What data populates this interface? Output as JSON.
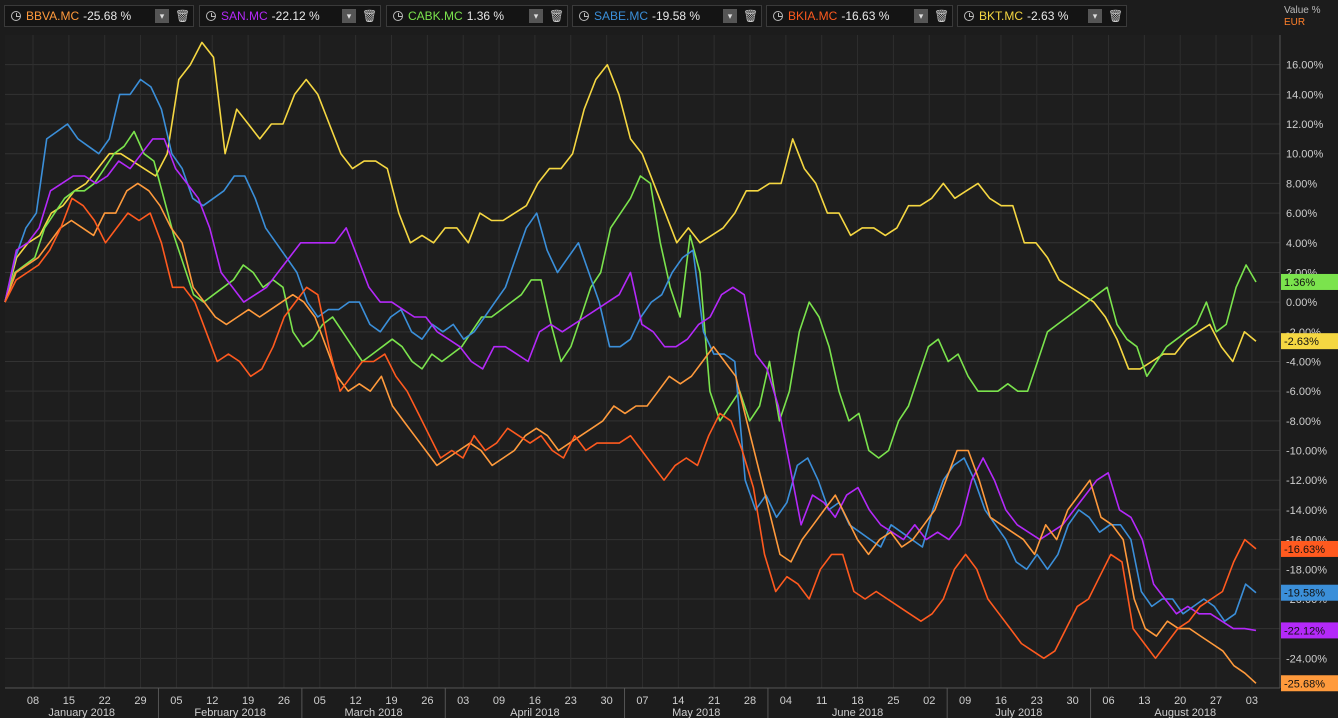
{
  "header": {
    "unit_label": "Value %",
    "currency_label": "EUR"
  },
  "legend": [
    {
      "symbol": "BBVA.MC",
      "value": "-25.68 %",
      "color": "#ff9a3c",
      "icon": "clock-icon"
    },
    {
      "symbol": "SAN.MC",
      "value": "-22.12 %",
      "color": "#b429f9",
      "icon": "clock-icon"
    },
    {
      "symbol": "CABK.MC",
      "value": "1.36 %",
      "color": "#7be34d",
      "icon": "clock-icon"
    },
    {
      "symbol": "SABE.MC",
      "value": "-19.58 %",
      "color": "#3b8fd9",
      "icon": "clock-icon"
    },
    {
      "symbol": "BKIA.MC",
      "value": "-16.63 %",
      "color": "#ff5a1f",
      "icon": "clock-icon"
    },
    {
      "symbol": "BKT.MC",
      "value": "-2.63 %",
      "color": "#f5d742",
      "icon": "clock-icon"
    }
  ],
  "chart_data": {
    "type": "line",
    "ylabel": "Value %",
    "ylim": [
      -26,
      18
    ],
    "y_ticks": [
      "16.00%",
      "14.00%",
      "12.00%",
      "10.00%",
      "8.00%",
      "6.00%",
      "4.00%",
      "2.00%",
      "0.00%",
      "-2.00%",
      "-4.00%",
      "-6.00%",
      "-8.00%",
      "-10.00%",
      "-12.00%",
      "-14.00%",
      "-16.00%",
      "-18.00%",
      "-20.00%",
      "-22.00%",
      "-24.00%"
    ],
    "y_tick_values": [
      16,
      14,
      12,
      10,
      8,
      6,
      4,
      2,
      0,
      -2,
      -4,
      -6,
      -8,
      -10,
      -12,
      -14,
      -16,
      -18,
      -20,
      -22,
      -24
    ],
    "x_ticks": [
      "08",
      "15",
      "22",
      "29",
      "05",
      "12",
      "19",
      "26",
      "05",
      "12",
      "19",
      "26",
      "03",
      "09",
      "16",
      "23",
      "30",
      "07",
      "14",
      "21",
      "28",
      "04",
      "11",
      "18",
      "25",
      "02",
      "09",
      "16",
      "23",
      "30",
      "06",
      "13",
      "20",
      "27",
      "03"
    ],
    "months": [
      "January 2018",
      "February 2018",
      "March 2018",
      "April 2018",
      "May 2018",
      "June 2018",
      "July 2018",
      "August 2018"
    ],
    "end_labels": [
      {
        "series": "CABK.MC",
        "text": "1.36%",
        "value": 1.36
      },
      {
        "series": "BKT.MC",
        "text": "-2.63%",
        "value": -2.63
      },
      {
        "series": "BKIA.MC",
        "text": "-16.63%",
        "value": -16.63
      },
      {
        "series": "SABE.MC",
        "text": "-19.58%",
        "value": -19.58
      },
      {
        "series": "SAN.MC",
        "text": "-22.12%",
        "value": -22.12
      },
      {
        "series": "BBVA.MC",
        "text": "-25.68%",
        "value": -25.68
      }
    ],
    "series": [
      {
        "name": "BKT.MC",
        "color": "#f5d742",
        "values": [
          0,
          3,
          4,
          4.5,
          6,
          6.5,
          7.5,
          8,
          9,
          10,
          10,
          9.5,
          9,
          8.5,
          10,
          15,
          16,
          17.5,
          16.5,
          10,
          13,
          12,
          11,
          12,
          12,
          14,
          15,
          14,
          12,
          10,
          9,
          9.5,
          9.5,
          9,
          6,
          4,
          4.5,
          4,
          5,
          5,
          4,
          6,
          5.5,
          5.5,
          6,
          6.5,
          8,
          9,
          9,
          10,
          13,
          15,
          16,
          14,
          11,
          10,
          8,
          6,
          4,
          5,
          4,
          4.5,
          5,
          6,
          7.5,
          7.5,
          8,
          8,
          11,
          9,
          8,
          6,
          6,
          4.5,
          5,
          5,
          4.5,
          5,
          6.5,
          6.5,
          7,
          8,
          7,
          7.5,
          8,
          7,
          6.5,
          6.5,
          4,
          4,
          3,
          1.5,
          1,
          0.5,
          0,
          -1,
          -2.5,
          -4.5,
          -4.5,
          -4,
          -3.5,
          -3.5,
          -2.5,
          -2,
          -1.5,
          -3,
          -4,
          -2,
          -2.63
        ]
      },
      {
        "name": "CABK.MC",
        "color": "#7be34d",
        "values": [
          0,
          2,
          2.5,
          3,
          5,
          6,
          7,
          7.5,
          7.5,
          8,
          9,
          10,
          10.5,
          11.5,
          10,
          9.5,
          7,
          4.5,
          2.5,
          0.5,
          0,
          0.5,
          1,
          1.5,
          2.5,
          2,
          1,
          1.5,
          1,
          -2,
          -3,
          -2.5,
          -1.5,
          -1,
          -2,
          -3,
          -4,
          -3.5,
          -3,
          -2.5,
          -3,
          -4,
          -4.5,
          -3.5,
          -4,
          -3.5,
          -3,
          -2,
          -1,
          -1,
          -0.5,
          0,
          0.5,
          1.5,
          1.5,
          -1.5,
          -4,
          -3,
          -1,
          1,
          2,
          5,
          6,
          7,
          8.5,
          8,
          4,
          1,
          -1,
          4.5,
          2,
          -6,
          -8,
          -7,
          -6,
          -8,
          -7,
          -4,
          -8,
          -6,
          -2,
          0,
          -1,
          -3,
          -6,
          -8,
          -7.5,
          -10,
          -10.5,
          -10,
          -8,
          -7,
          -5,
          -3,
          -2.5,
          -4,
          -3.5,
          -5,
          -6,
          -6,
          -6,
          -5.5,
          -6,
          -6,
          -4,
          -2,
          -1.5,
          -1,
          -0.5,
          0,
          0.5,
          1,
          -1.5,
          -2.5,
          -3,
          -5,
          -4,
          -3,
          -2.5,
          -2,
          -1.5,
          0,
          -2,
          -1.5,
          1,
          2.5,
          1.36
        ]
      },
      {
        "name": "SABE.MC",
        "color": "#3b8fd9",
        "values": [
          0,
          3,
          5,
          6,
          11,
          11.5,
          12,
          11,
          10.5,
          10,
          11,
          14,
          14,
          15,
          14.5,
          13,
          10,
          9,
          7,
          6.5,
          7,
          7.5,
          8.5,
          8.5,
          7,
          5,
          4,
          3,
          2,
          0,
          -1,
          -0.5,
          -0.5,
          0,
          0,
          -1.5,
          -2,
          -1,
          -0.5,
          -2,
          -2.5,
          -1.5,
          -2,
          -1.5,
          -2.5,
          -2,
          -1,
          0,
          1,
          3,
          5,
          6,
          3.5,
          2,
          3,
          4,
          2,
          0,
          -3,
          -3,
          -2.5,
          -1,
          0,
          0.5,
          2,
          3,
          3.5,
          -2,
          -3.5,
          -3.5,
          -4,
          -12,
          -14,
          -13,
          -14.5,
          -13.5,
          -11,
          -10.5,
          -12,
          -14,
          -13.5,
          -15,
          -15.5,
          -16,
          -16.5,
          -15,
          -15.5,
          -16,
          -16.5,
          -14,
          -12,
          -11,
          -10.5,
          -12,
          -14,
          -15,
          -16,
          -17.5,
          -18,
          -17,
          -18,
          -17,
          -15,
          -14,
          -14.5,
          -15.5,
          -15,
          -15,
          -16,
          -19.5,
          -20.5,
          -20,
          -20,
          -21,
          -20.5,
          -20,
          -20.5,
          -21.5,
          -21,
          -19,
          -19.58
        ]
      },
      {
        "name": "SAN.MC",
        "color": "#b429f9",
        "values": [
          0,
          3.5,
          4,
          5,
          7.5,
          8,
          8.5,
          8.5,
          8,
          8.5,
          9.5,
          9,
          10,
          11,
          11,
          9,
          8,
          7,
          5,
          2,
          1,
          0,
          0.5,
          1,
          2,
          3,
          4,
          4,
          4,
          4,
          5,
          3,
          1,
          0,
          0,
          -0.5,
          -1,
          -1,
          -2,
          -2.5,
          -3,
          -4,
          -4.5,
          -3,
          -3,
          -3.5,
          -4,
          -2,
          -1.5,
          -2,
          -1.5,
          -1,
          -0.5,
          0,
          0.5,
          2,
          -1.5,
          -2,
          -3,
          -3,
          -2.5,
          -1.5,
          -1,
          0.5,
          1,
          0.5,
          -3.5,
          -4.5,
          -7,
          -11,
          -15,
          -13,
          -13.5,
          -14.5,
          -13,
          -12.5,
          -14,
          -15,
          -15.5,
          -16,
          -15,
          -16,
          -15.5,
          -16,
          -15,
          -12,
          -10.5,
          -12,
          -14,
          -15,
          -15.5,
          -16,
          -15.5,
          -15,
          -14,
          -13,
          -12,
          -11.5,
          -14,
          -14.5,
          -16,
          -19,
          -20,
          -21,
          -20.5,
          -21,
          -21,
          -21.5,
          -22,
          -22,
          -22.12
        ]
      },
      {
        "name": "BBVA.MC",
        "color": "#ff9a3c",
        "values": [
          0,
          2,
          2.5,
          3,
          4,
          5,
          5.5,
          5,
          4.5,
          6,
          6,
          7.5,
          8,
          7.5,
          6.5,
          5,
          4,
          1,
          0,
          -1,
          -1.5,
          -1,
          -0.5,
          -1,
          -0.5,
          0,
          0.5,
          0,
          -1,
          -3,
          -5,
          -6,
          -5.5,
          -6,
          -5,
          -7,
          -8,
          -9,
          -10,
          -11,
          -10.5,
          -10,
          -9.5,
          -10,
          -11,
          -10.5,
          -10,
          -9,
          -8.5,
          -9,
          -10,
          -9.5,
          -9,
          -8.5,
          -8,
          -7,
          -7.5,
          -7,
          -7,
          -6,
          -5,
          -5.5,
          -5,
          -4,
          -3,
          -4,
          -5,
          -8,
          -11,
          -14,
          -17,
          -17.5,
          -16,
          -15,
          -14,
          -13,
          -14.5,
          -16,
          -17,
          -16,
          -15.5,
          -16.5,
          -16,
          -15,
          -14,
          -12,
          -10,
          -10,
          -12,
          -14.5,
          -15,
          -15.5,
          -16,
          -17,
          -15,
          -16,
          -14,
          -13,
          -12,
          -14.5,
          -15,
          -16,
          -20,
          -22,
          -22.5,
          -21.5,
          -22,
          -22,
          -22.5,
          -23,
          -23.5,
          -24.5,
          -25,
          -25.68
        ]
      },
      {
        "name": "BKIA.MC",
        "color": "#ff5a1f",
        "values": [
          0,
          1.5,
          2,
          2.5,
          3.5,
          5,
          7,
          6.5,
          5.5,
          4,
          5,
          6,
          5.5,
          6,
          4,
          1,
          1,
          0,
          -2,
          -4,
          -3.5,
          -4,
          -5,
          -4.5,
          -3,
          -1,
          0,
          1,
          0.5,
          -3,
          -6,
          -5,
          -4,
          -4,
          -3.5,
          -5,
          -6,
          -7.5,
          -9,
          -10.5,
          -10,
          -10.5,
          -9,
          -10,
          -9.5,
          -8.5,
          -9,
          -9.5,
          -9,
          -10,
          -10.5,
          -9,
          -10,
          -9.5,
          -9.5,
          -9.5,
          -9,
          -10,
          -11,
          -12,
          -11,
          -10.5,
          -11,
          -9,
          -7.5,
          -8,
          -10,
          -12.5,
          -17,
          -19.5,
          -18.5,
          -19,
          -20,
          -18,
          -17,
          -17,
          -19.5,
          -20,
          -19.5,
          -20,
          -20.5,
          -21,
          -21.5,
          -21,
          -20,
          -18,
          -17,
          -18,
          -20,
          -21,
          -22,
          -23,
          -23.5,
          -24,
          -23.5,
          -22,
          -20.5,
          -20,
          -18.5,
          -17,
          -17.5,
          -22,
          -23,
          -24,
          -23,
          -22,
          -21.5,
          -20.5,
          -20,
          -19.5,
          -17.5,
          -16,
          -16.63
        ]
      }
    ]
  }
}
